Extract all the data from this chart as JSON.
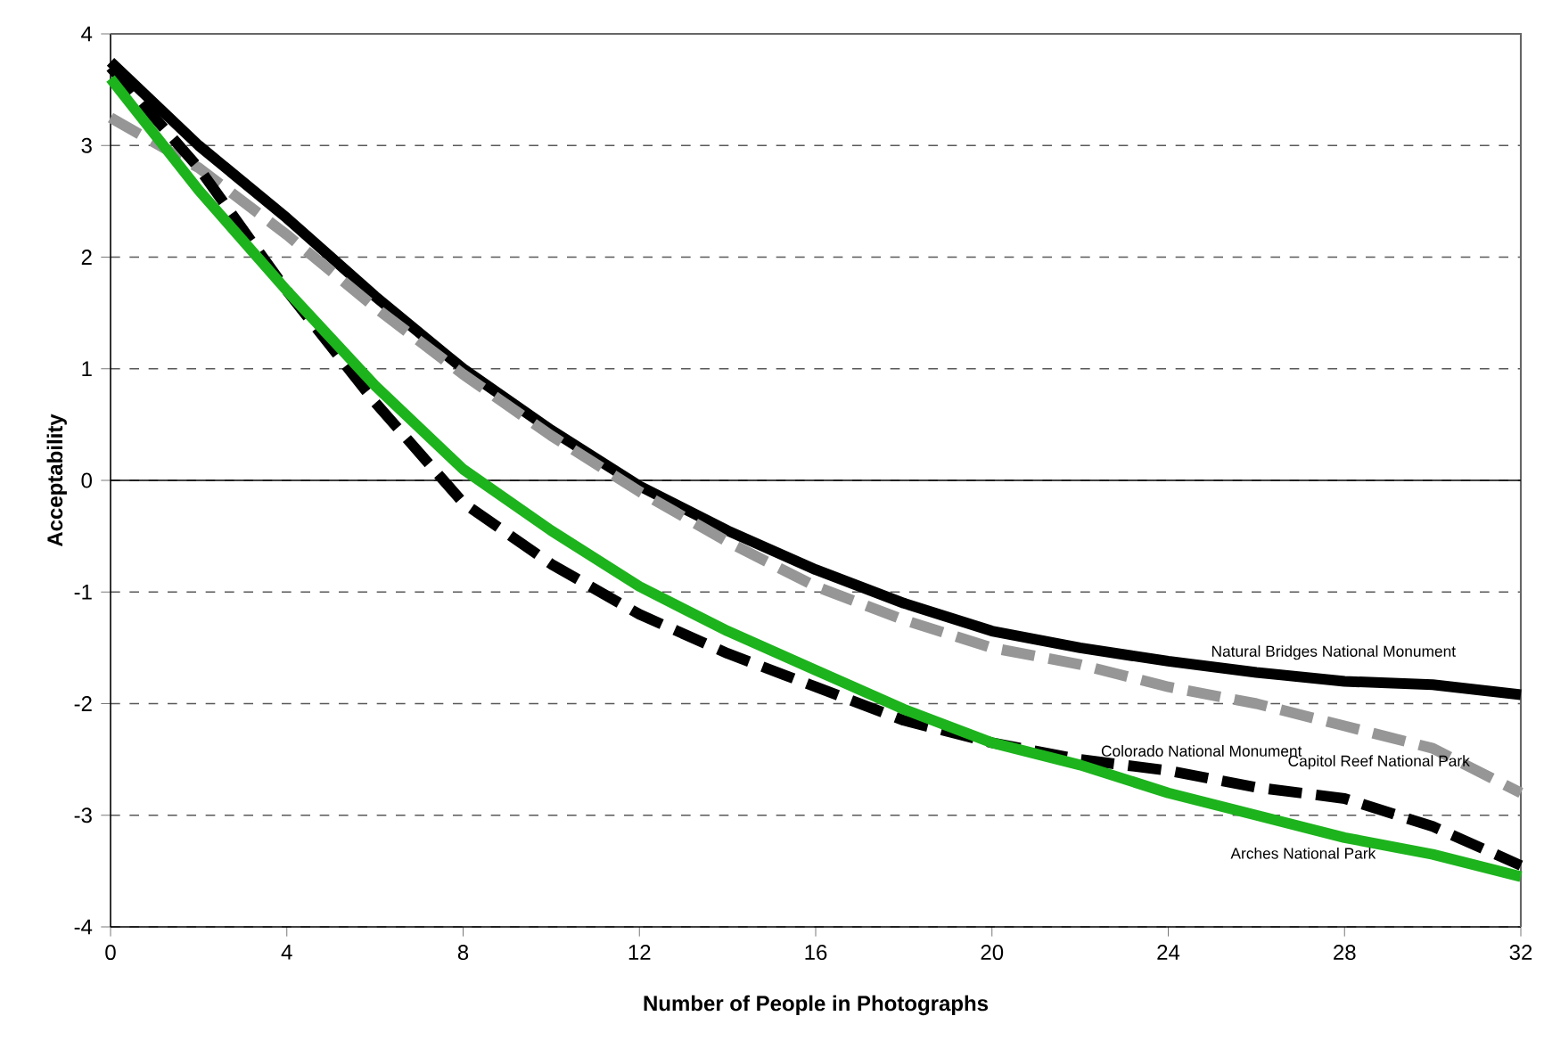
{
  "chart_data": {
    "type": "line",
    "xlabel": "Number of People in Photographs",
    "ylabel": "Acceptability",
    "x": [
      0,
      2,
      4,
      6,
      8,
      10,
      12,
      14,
      16,
      18,
      20,
      22,
      24,
      26,
      28,
      30,
      32
    ],
    "series": [
      {
        "name": "Natural Bridges National Monument",
        "color": "#000000",
        "line_style": "solid",
        "values": [
          3.75,
          3.0,
          2.35,
          1.65,
          1.0,
          0.45,
          -0.05,
          -0.45,
          -0.8,
          -1.1,
          -1.35,
          -1.5,
          -1.62,
          -1.72,
          -1.8,
          -1.83,
          -1.92
        ]
      },
      {
        "name": "Capitol Reef National Park",
        "color": "#969696",
        "line_style": "dashed",
        "values": [
          3.25,
          2.8,
          2.2,
          1.55,
          0.95,
          0.4,
          -0.1,
          -0.55,
          -0.95,
          -1.25,
          -1.5,
          -1.65,
          -1.85,
          -2.0,
          -2.2,
          -2.4,
          -2.8
        ]
      },
      {
        "name": "Colorado National Monument",
        "color": "#000000",
        "line_style": "dashed",
        "values": [
          3.7,
          2.8,
          1.7,
          0.7,
          -0.2,
          -0.75,
          -1.2,
          -1.55,
          -1.85,
          -2.15,
          -2.35,
          -2.5,
          -2.6,
          -2.75,
          -2.85,
          -3.1,
          -3.45
        ]
      },
      {
        "name": "Arches National Park",
        "color": "#1db31d",
        "line_style": "solid",
        "values": [
          3.6,
          2.6,
          1.7,
          0.85,
          0.1,
          -0.45,
          -0.95,
          -1.35,
          -1.7,
          -2.05,
          -2.35,
          -2.55,
          -2.8,
          -3.0,
          -3.2,
          -3.35,
          -3.55
        ]
      }
    ],
    "xlim": [
      0,
      32
    ],
    "xticks": [
      0,
      4,
      8,
      12,
      16,
      20,
      24,
      28,
      32
    ],
    "ylim": [
      -4,
      4
    ],
    "yticks": [
      -4,
      -3,
      -2,
      -1,
      0,
      1,
      2,
      3,
      4
    ],
    "grid": "y",
    "marker": "none",
    "legend": false,
    "ref_lines": [
      {
        "axis": "y",
        "value": 0,
        "color": "#000000",
        "line_style": "solid"
      }
    ]
  }
}
